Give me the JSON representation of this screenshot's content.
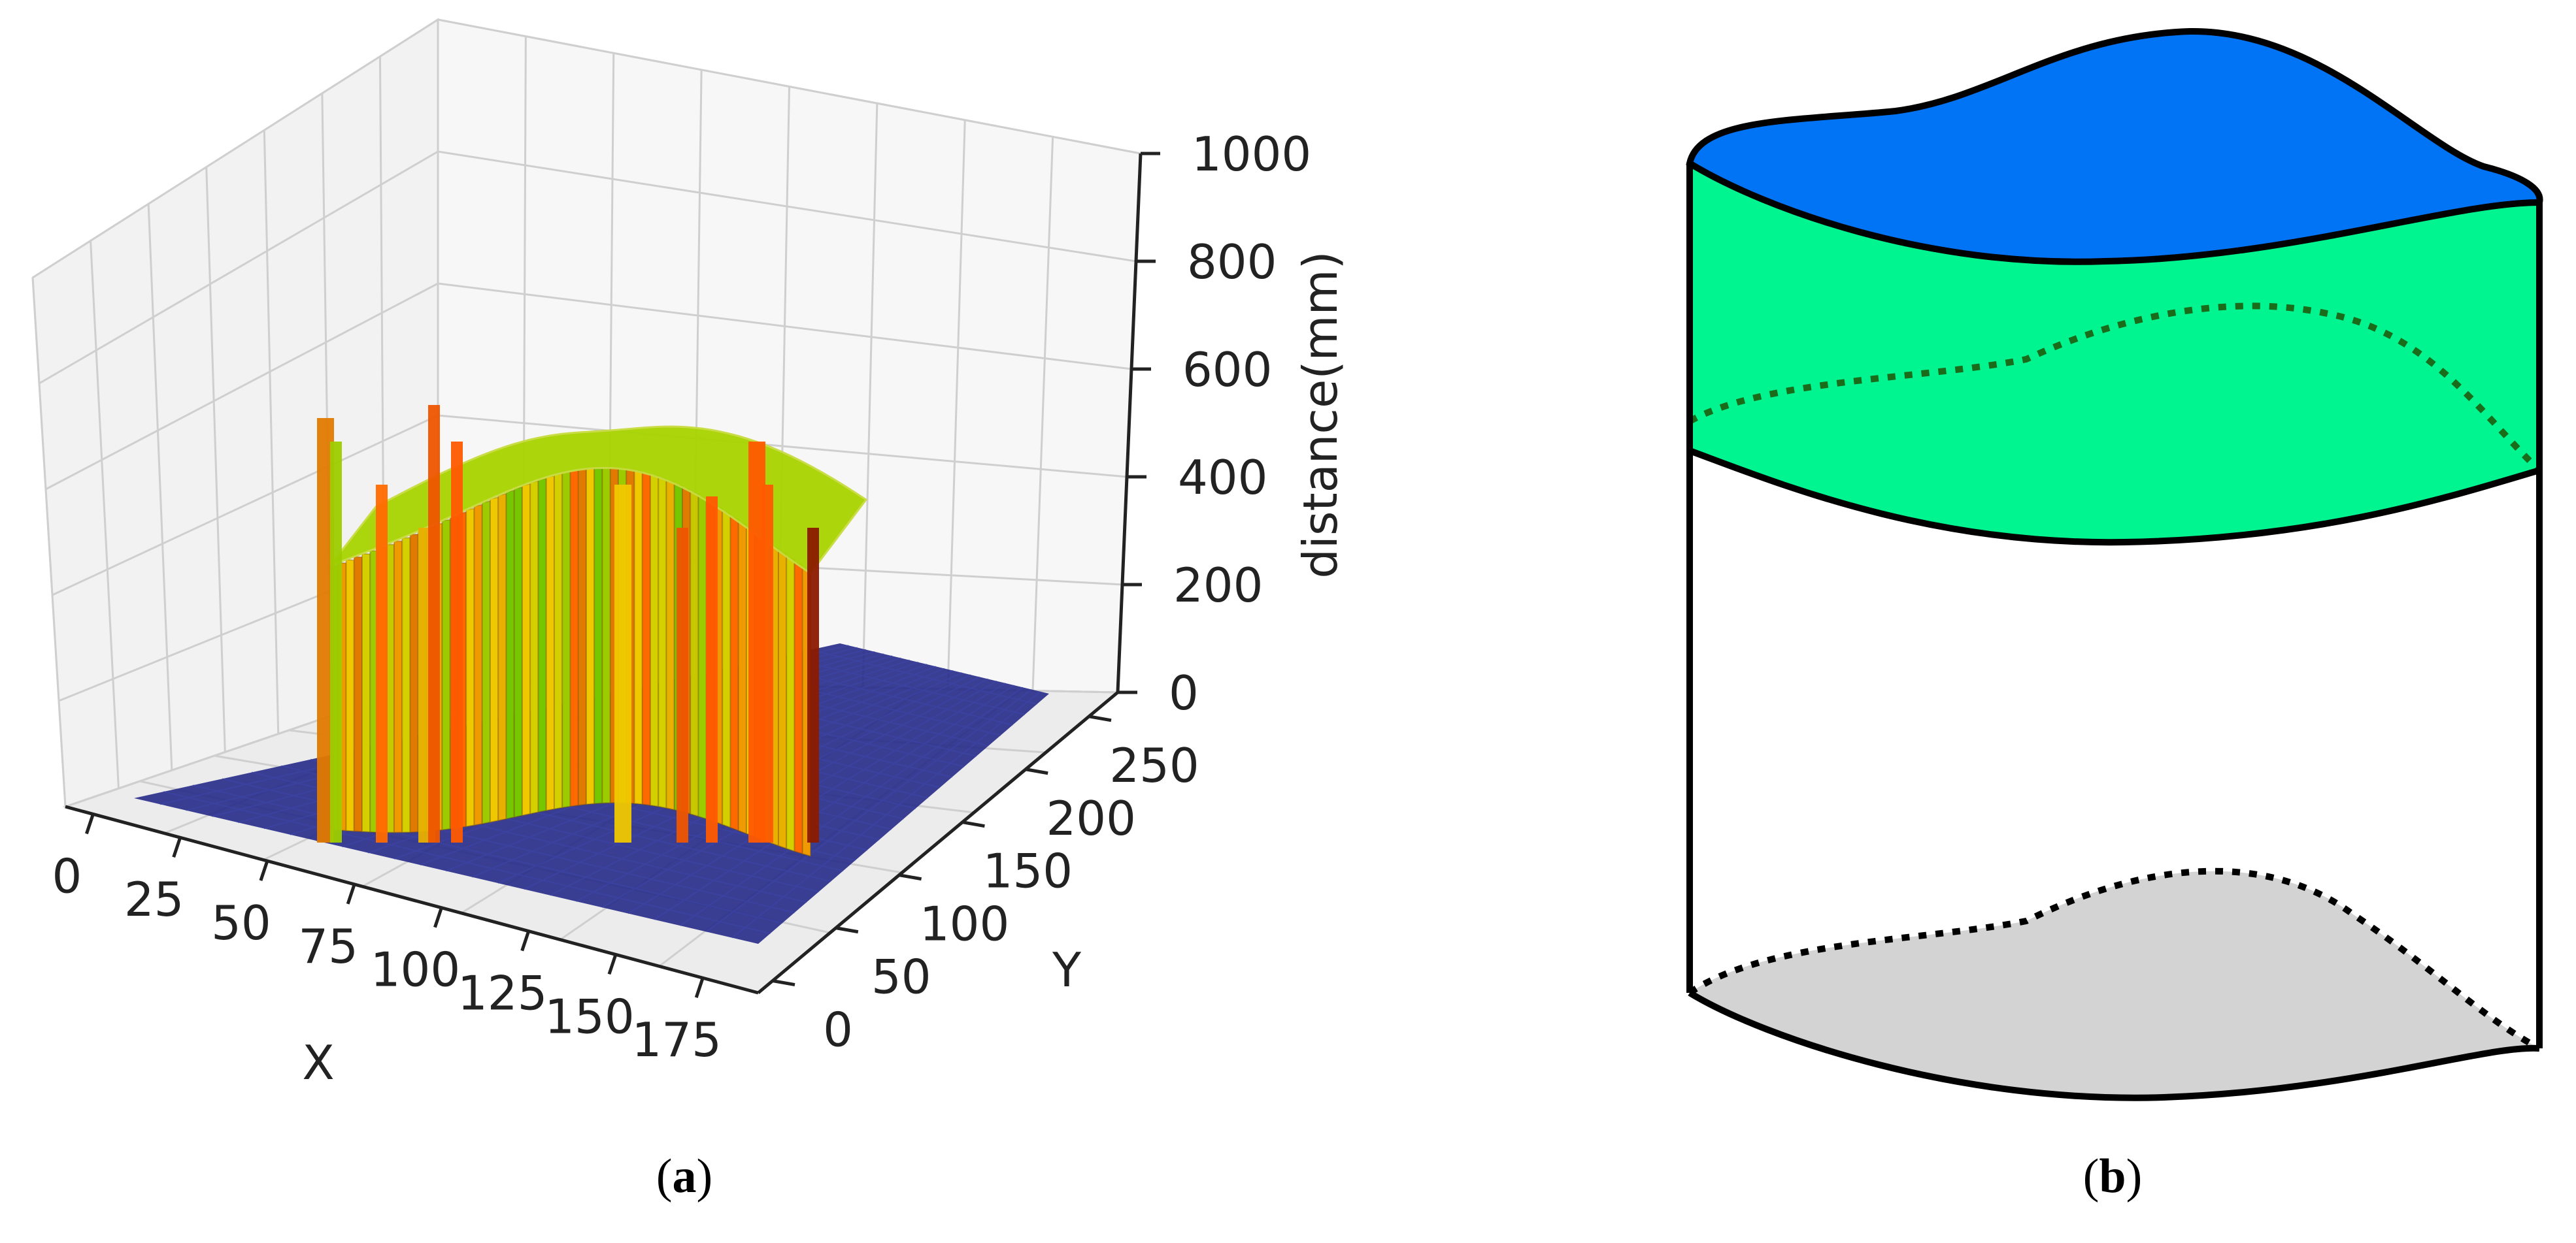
{
  "panel_a": {
    "caption_open": "(",
    "caption_letter": "a",
    "caption_close": ")"
  },
  "panel_b": {
    "caption_open": "(",
    "caption_letter": "b",
    "caption_close": ")",
    "colors": {
      "top_surface": "#0074f5",
      "upper_band": "#00f590",
      "bottom_surface": "#d3d3d3",
      "outline": "#000000",
      "dotted_upper": "#1a6b1a"
    }
  },
  "chart_data": {
    "type": "surface3d",
    "title": "",
    "xlabel": "X",
    "ylabel": "Y",
    "zlabel": "distance(mm)",
    "x_ticks": [
      "0",
      "25",
      "50",
      "75",
      "100",
      "125",
      "150",
      "175"
    ],
    "y_ticks": [
      "0",
      "50",
      "100",
      "150",
      "200",
      "250"
    ],
    "z_ticks": [
      "0",
      "200",
      "400",
      "600",
      "800",
      "1000"
    ],
    "xlim": [
      0,
      175
    ],
    "ylim": [
      0,
      250
    ],
    "zlim": [
      0,
      1000
    ],
    "grid": true,
    "colormap": "jet-like (blue floor, green/yellow/orange/red walls)",
    "floor_value": 0,
    "surface_top_approx": [
      500,
      600
    ],
    "spike_max_approx": 800,
    "floor_color": "#2a2f8a"
  }
}
